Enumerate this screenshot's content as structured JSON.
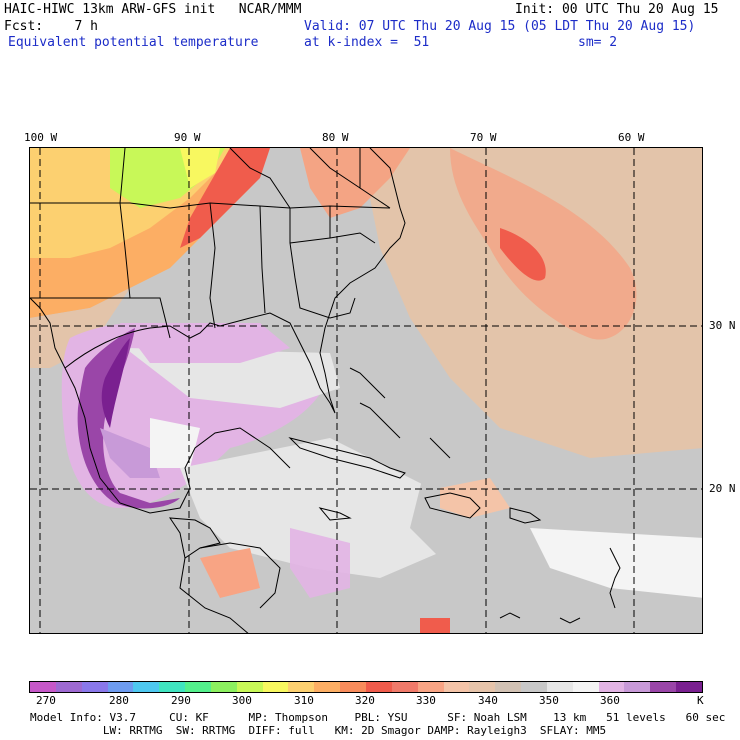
{
  "header": {
    "left_line1": "HAIC-HIWC 13km ARW-GFS init   NCAR/MMM",
    "left_line2": "Fcst:    7 h",
    "left_line3": "Equivalent potential temperature",
    "right_line1": "Init: 00 UTC Thu 20 Aug 15",
    "right_line2": "Valid: 07 UTC Thu 20 Aug 15 (05 LDT Thu 20 Aug 15)",
    "right_line3a": "at k-index =  51",
    "right_line3b": "sm= 2"
  },
  "axes": {
    "lon_labels": [
      "100 W",
      "90 W",
      "80 W",
      "70 W",
      "60 W"
    ],
    "lat_labels": [
      "30 N",
      "20 N"
    ]
  },
  "colorbar": {
    "colors": [
      "#c658c8",
      "#9e6ad2",
      "#8a78ea",
      "#6e9cf0",
      "#4ec8f0",
      "#40e4c0",
      "#54f08c",
      "#8cf060",
      "#c8f858",
      "#f8f860",
      "#fcd070",
      "#fcae64",
      "#f88c5c",
      "#f05c4c",
      "#f07a6a",
      "#f8a484",
      "#f4c4a8",
      "#e6c4aa",
      "#d2c2b4",
      "#c8c8c8",
      "#e6e6e6",
      "#f4f4f4",
      "#e2b4e4",
      "#c89ad8",
      "#9a46a8",
      "#7a2090"
    ],
    "tick_labels": [
      "270",
      "280",
      "290",
      "300",
      "310",
      "320",
      "330",
      "340",
      "350",
      "360",
      "K"
    ]
  },
  "model_info": {
    "line1": "Model Info: V3.7     CU: KF      MP: Thompson    PBL: YSU      SF: Noah LSM    13 km   51 levels   60 sec",
    "line2": "           LW: RRTMG  SW: RRTMG  DIFF: full   KM: 2D Smagor DAMP: Rayleigh3  SFLAY: MM5"
  }
}
